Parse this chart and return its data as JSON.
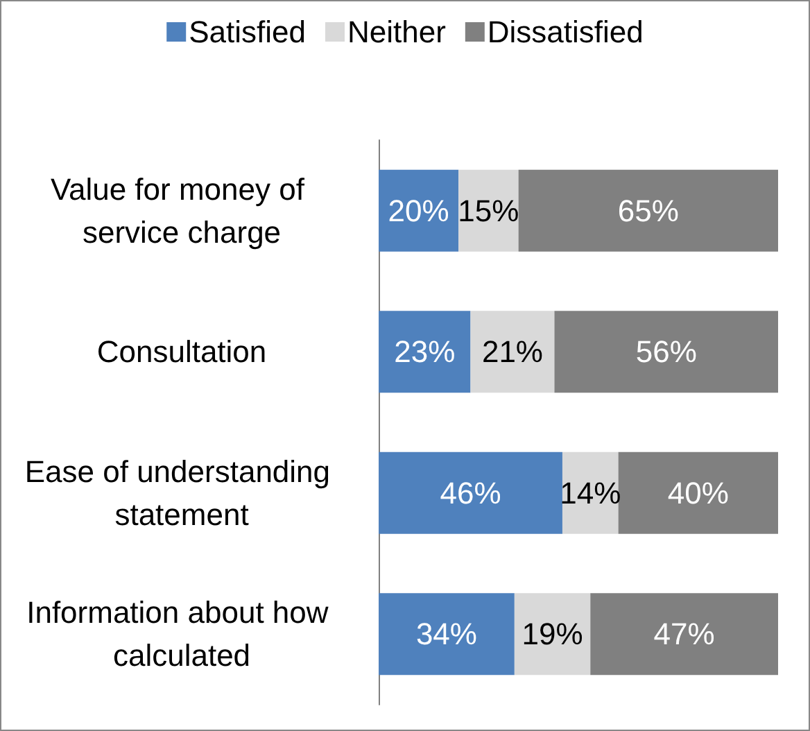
{
  "chart_data": {
    "type": "bar",
    "orientation": "horizontal",
    "stacked": true,
    "categories": [
      "Value for money of service charge",
      "Consultation",
      "Ease of understanding statement",
      "Information about how calculated"
    ],
    "series": [
      {
        "name": "Satisfied",
        "color": "#4f81bd",
        "values": [
          20,
          23,
          46,
          34
        ],
        "value_labels": [
          "20%",
          "23%",
          "46%",
          "34%"
        ]
      },
      {
        "name": "Neither",
        "color": "#d9d9d9",
        "values": [
          15,
          21,
          14,
          19
        ],
        "value_labels": [
          "15%",
          "21%",
          "14%",
          "19%"
        ]
      },
      {
        "name": "Dissatisfied",
        "color": "#808080",
        "values": [
          65,
          56,
          40,
          47
        ],
        "value_labels": [
          "65%",
          "56%",
          "40%",
          "47%"
        ]
      }
    ],
    "xlim": [
      0,
      100
    ],
    "tick_labels": "y",
    "legend": "top"
  }
}
